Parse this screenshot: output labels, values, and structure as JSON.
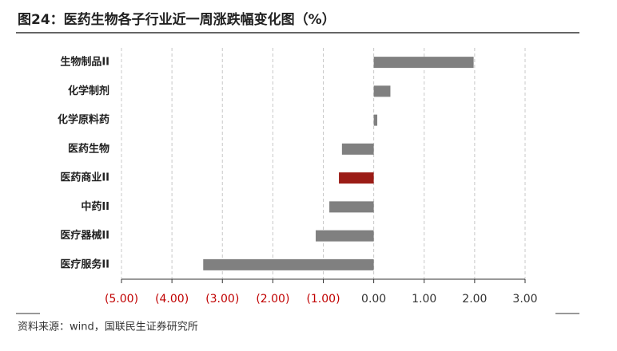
{
  "chart_data": {
    "type": "bar",
    "orientation": "horizontal",
    "title": "图24：医药生物各子行业近一周涨跌幅变化图（%）",
    "source": "资料来源：wind，国联民生证券研究所",
    "categories": [
      "生物制品II",
      "化学制剂",
      "化学原料药",
      "医药生物",
      "医药商业II",
      "中药II",
      "医疗器械II",
      "医疗服务II"
    ],
    "values": [
      1.98,
      0.33,
      0.07,
      -0.63,
      -0.69,
      -0.88,
      -1.15,
      -3.38
    ],
    "colors": [
      "#808080",
      "#808080",
      "#808080",
      "#808080",
      "#9b1c16",
      "#808080",
      "#808080",
      "#808080"
    ],
    "xlim": [
      -5,
      3
    ],
    "xticks": [
      {
        "value": -5,
        "label": "(5.00)"
      },
      {
        "value": -4,
        "label": "(4.00)"
      },
      {
        "value": -3,
        "label": "(3.00)"
      },
      {
        "value": -2,
        "label": "(2.00)"
      },
      {
        "value": -1,
        "label": "(1.00)"
      },
      {
        "value": 0,
        "label": "0.00"
      },
      {
        "value": 1,
        "label": "1.00"
      },
      {
        "value": 2,
        "label": "2.00"
      },
      {
        "value": 3,
        "label": "3.00"
      }
    ],
    "negative_tick_color": "#c00000",
    "grid": true
  }
}
